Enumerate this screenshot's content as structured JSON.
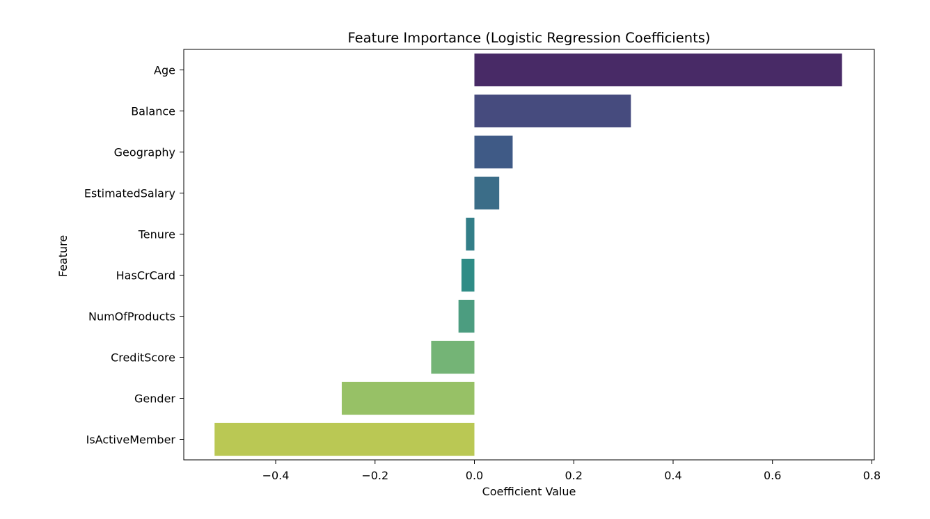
{
  "chart_data": {
    "type": "bar",
    "orientation": "horizontal",
    "title": "Feature Importance (Logistic Regression Coefficients)",
    "xlabel": "Coefficient Value",
    "ylabel": "Feature",
    "categories": [
      "Age",
      "Balance",
      "Geography",
      "EstimatedSalary",
      "Tenure",
      "HasCrCard",
      "NumOfProducts",
      "CreditScore",
      "Gender",
      "IsActiveMember"
    ],
    "values": [
      0.74,
      0.315,
      0.077,
      0.05,
      -0.017,
      -0.026,
      -0.032,
      -0.087,
      -0.267,
      -0.523
    ],
    "colors": [
      "#482a66",
      "#464b7e",
      "#3f5a86",
      "#3b6d88",
      "#337e88",
      "#2f8c86",
      "#4c9d80",
      "#74b476",
      "#97c166",
      "#bac854"
    ],
    "xlim": [
      -0.585,
      0.805
    ],
    "xticks": [
      -0.4,
      -0.2,
      0.0,
      0.2,
      0.4,
      0.6,
      0.8
    ],
    "xtick_labels": [
      "−0.4",
      "−0.2",
      "0.0",
      "0.2",
      "0.4",
      "0.6",
      "0.8"
    ],
    "grid": false,
    "legend": "none"
  }
}
